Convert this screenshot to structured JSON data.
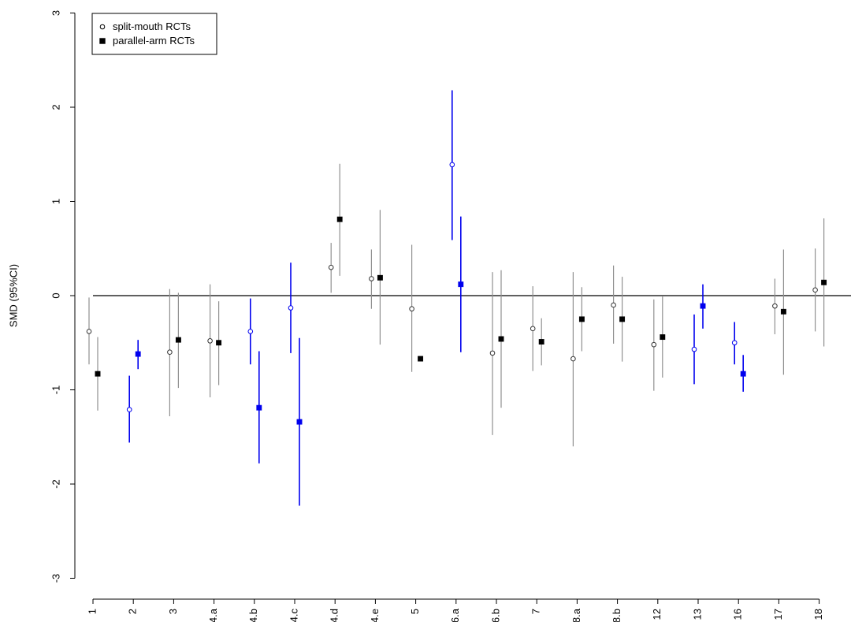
{
  "chart_data": {
    "type": "scatter",
    "ylabel": "SMD (95%CI)",
    "xlabel": "",
    "ylim": [
      -3,
      3
    ],
    "yticks": [
      -3,
      -2,
      -1,
      0,
      1,
      2,
      3
    ],
    "categories": [
      "1",
      "2",
      "3",
      "4.a",
      "4.b",
      "4.c",
      "4.d",
      "4.e",
      "5",
      "6.a",
      "6.b",
      "7",
      "8.a",
      "8.b",
      "12",
      "13",
      "16",
      "17",
      "18"
    ],
    "reference_line": 0,
    "legend_position": "top-left",
    "legend": [
      {
        "label": "split-mouth RCTs",
        "marker": "open-circle"
      },
      {
        "label": "parallel-arm RCTs",
        "marker": "filled-square"
      }
    ],
    "colors": {
      "gray": "#909090",
      "blue": "#0000ee",
      "black": "#000000"
    },
    "series": [
      {
        "name": "split-mouth RCTs",
        "marker": "open-circle",
        "points": [
          {
            "cat": "1",
            "est": -0.38,
            "lo": -0.73,
            "hi": -0.02,
            "color": "gray"
          },
          {
            "cat": "2",
            "est": -1.21,
            "lo": -1.56,
            "hi": -0.85,
            "color": "blue"
          },
          {
            "cat": "3",
            "est": -0.6,
            "lo": -1.28,
            "hi": 0.07,
            "color": "gray"
          },
          {
            "cat": "4.a",
            "est": -0.48,
            "lo": -1.08,
            "hi": 0.12,
            "color": "gray"
          },
          {
            "cat": "4.b",
            "est": -0.38,
            "lo": -0.73,
            "hi": -0.03,
            "color": "blue"
          },
          {
            "cat": "4.c",
            "est": -0.13,
            "lo": -0.61,
            "hi": 0.35,
            "color": "blue"
          },
          {
            "cat": "4.d",
            "est": 0.3,
            "lo": 0.03,
            "hi": 0.56,
            "color": "gray"
          },
          {
            "cat": "4.e",
            "est": 0.18,
            "lo": -0.14,
            "hi": 0.49,
            "color": "gray"
          },
          {
            "cat": "5",
            "est": -0.14,
            "lo": -0.81,
            "hi": 0.54,
            "color": "gray"
          },
          {
            "cat": "6.a",
            "est": 1.39,
            "lo": 0.59,
            "hi": 2.18,
            "color": "blue"
          },
          {
            "cat": "6.b",
            "est": -0.61,
            "lo": -1.48,
            "hi": 0.25,
            "color": "gray"
          },
          {
            "cat": "7",
            "est": -0.35,
            "lo": -0.8,
            "hi": 0.1,
            "color": "gray"
          },
          {
            "cat": "8.a",
            "est": -0.67,
            "lo": -1.6,
            "hi": 0.25,
            "color": "gray"
          },
          {
            "cat": "8.b",
            "est": -0.1,
            "lo": -0.51,
            "hi": 0.32,
            "color": "gray"
          },
          {
            "cat": "12",
            "est": -0.52,
            "lo": -1.01,
            "hi": -0.04,
            "color": "gray"
          },
          {
            "cat": "13",
            "est": -0.57,
            "lo": -0.94,
            "hi": -0.2,
            "color": "blue"
          },
          {
            "cat": "16",
            "est": -0.5,
            "lo": -0.73,
            "hi": -0.28,
            "color": "blue"
          },
          {
            "cat": "17",
            "est": -0.11,
            "lo": -0.41,
            "hi": 0.18,
            "color": "gray"
          },
          {
            "cat": "18",
            "est": 0.06,
            "lo": -0.38,
            "hi": 0.5,
            "color": "gray"
          }
        ]
      },
      {
        "name": "parallel-arm RCTs",
        "marker": "filled-square",
        "points": [
          {
            "cat": "1",
            "est": -0.83,
            "lo": -1.22,
            "hi": -0.44,
            "color": "gray"
          },
          {
            "cat": "2",
            "est": -0.62,
            "lo": -0.78,
            "hi": -0.47,
            "color": "blue"
          },
          {
            "cat": "3",
            "est": -0.47,
            "lo": -0.98,
            "hi": 0.03,
            "color": "gray"
          },
          {
            "cat": "4.a",
            "est": -0.5,
            "lo": -0.95,
            "hi": -0.06,
            "color": "gray"
          },
          {
            "cat": "4.b",
            "est": -1.19,
            "lo": -1.78,
            "hi": -0.59,
            "color": "blue"
          },
          {
            "cat": "4.c",
            "est": -1.34,
            "lo": -2.23,
            "hi": -0.45,
            "color": "blue"
          },
          {
            "cat": "4.d",
            "est": 0.81,
            "lo": 0.21,
            "hi": 1.4,
            "color": "gray"
          },
          {
            "cat": "4.e",
            "est": 0.19,
            "lo": -0.52,
            "hi": 0.91,
            "color": "gray"
          },
          {
            "cat": "5",
            "est": -0.67,
            "lo": -0.69,
            "hi": -0.65,
            "color": "gray"
          },
          {
            "cat": "6.a",
            "est": 0.12,
            "lo": -0.6,
            "hi": 0.84,
            "color": "blue"
          },
          {
            "cat": "6.b",
            "est": -0.46,
            "lo": -1.19,
            "hi": 0.27,
            "color": "gray"
          },
          {
            "cat": "7",
            "est": -0.49,
            "lo": -0.74,
            "hi": -0.24,
            "color": "gray"
          },
          {
            "cat": "8.a",
            "est": -0.25,
            "lo": -0.59,
            "hi": 0.09,
            "color": "gray"
          },
          {
            "cat": "8.b",
            "est": -0.25,
            "lo": -0.7,
            "hi": 0.2,
            "color": "gray"
          },
          {
            "cat": "12",
            "est": -0.44,
            "lo": -0.87,
            "hi": -0.01,
            "color": "gray"
          },
          {
            "cat": "13",
            "est": -0.11,
            "lo": -0.35,
            "hi": 0.12,
            "color": "blue"
          },
          {
            "cat": "16",
            "est": -0.83,
            "lo": -1.02,
            "hi": -0.63,
            "color": "blue"
          },
          {
            "cat": "17",
            "est": -0.17,
            "lo": -0.84,
            "hi": 0.49,
            "color": "gray"
          },
          {
            "cat": "18",
            "est": 0.14,
            "lo": -0.54,
            "hi": 0.82,
            "color": "gray"
          }
        ]
      }
    ]
  }
}
